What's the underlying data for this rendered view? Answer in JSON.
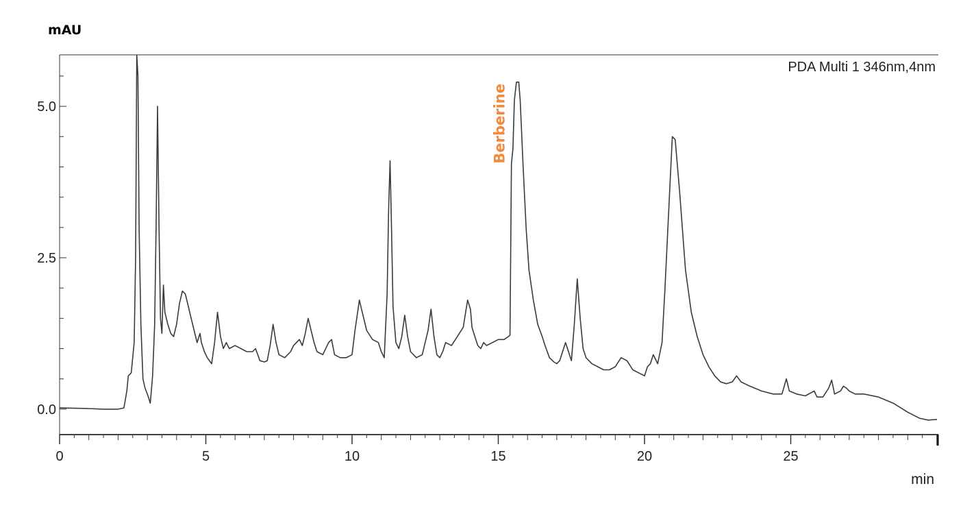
{
  "chart_data": {
    "type": "line",
    "ylabel": "mAU",
    "xlabel": "min",
    "legend": "PDA Multi 1 346nm,4nm",
    "legend_position": "top-right",
    "xlim": [
      0,
      30
    ],
    "ylim": [
      -0.42,
      5.85
    ],
    "x_ticks": [
      0,
      5,
      10,
      15,
      20,
      25
    ],
    "x_tick_labels": [
      "0",
      "5",
      "10",
      "15",
      "20",
      "25"
    ],
    "y_ticks": [
      0,
      2.5,
      5
    ],
    "y_tick_labels": [
      "0.0",
      "2.5",
      "5.0"
    ],
    "grid": false,
    "line_color": "#3a3a3a",
    "annotations": [
      {
        "text": "Berberine",
        "x": 15.4,
        "y": 4.1,
        "color": "#f28a3c",
        "rotation": -90
      }
    ],
    "series": [
      {
        "points": [
          [
            0,
            0.02
          ],
          [
            1,
            0.01
          ],
          [
            1.5,
            0.0
          ],
          [
            2.0,
            0.0
          ],
          [
            2.2,
            0.02
          ],
          [
            2.3,
            0.3
          ],
          [
            2.35,
            0.55
          ],
          [
            2.45,
            0.6
          ],
          [
            2.55,
            1.1
          ],
          [
            2.6,
            2.5
          ],
          [
            2.64,
            5.85
          ],
          [
            2.68,
            5.5
          ],
          [
            2.72,
            3.0
          ],
          [
            2.78,
            1.4
          ],
          [
            2.85,
            0.5
          ],
          [
            2.92,
            0.35
          ],
          [
            3.0,
            0.25
          ],
          [
            3.05,
            0.18
          ],
          [
            3.1,
            0.1
          ],
          [
            3.18,
            0.55
          ],
          [
            3.25,
            1.4
          ],
          [
            3.3,
            3.0
          ],
          [
            3.35,
            5.0
          ],
          [
            3.4,
            3.0
          ],
          [
            3.45,
            1.5
          ],
          [
            3.5,
            1.25
          ],
          [
            3.55,
            2.05
          ],
          [
            3.6,
            1.6
          ],
          [
            3.7,
            1.4
          ],
          [
            3.8,
            1.25
          ],
          [
            3.9,
            1.2
          ],
          [
            4.0,
            1.4
          ],
          [
            4.1,
            1.75
          ],
          [
            4.2,
            1.95
          ],
          [
            4.3,
            1.9
          ],
          [
            4.4,
            1.7
          ],
          [
            4.5,
            1.5
          ],
          [
            4.6,
            1.3
          ],
          [
            4.7,
            1.1
          ],
          [
            4.8,
            1.25
          ],
          [
            4.85,
            1.1
          ],
          [
            4.95,
            0.95
          ],
          [
            5.05,
            0.85
          ],
          [
            5.2,
            0.75
          ],
          [
            5.3,
            1.1
          ],
          [
            5.4,
            1.6
          ],
          [
            5.5,
            1.2
          ],
          [
            5.6,
            1.0
          ],
          [
            5.7,
            1.1
          ],
          [
            5.8,
            1.0
          ],
          [
            6.0,
            1.05
          ],
          [
            6.2,
            1.0
          ],
          [
            6.4,
            0.95
          ],
          [
            6.6,
            0.95
          ],
          [
            6.7,
            1.0
          ],
          [
            6.85,
            0.8
          ],
          [
            7.0,
            0.78
          ],
          [
            7.1,
            0.8
          ],
          [
            7.2,
            1.05
          ],
          [
            7.3,
            1.4
          ],
          [
            7.4,
            1.1
          ],
          [
            7.5,
            0.9
          ],
          [
            7.7,
            0.85
          ],
          [
            7.9,
            0.95
          ],
          [
            8.0,
            1.05
          ],
          [
            8.2,
            1.15
          ],
          [
            8.3,
            1.05
          ],
          [
            8.4,
            1.25
          ],
          [
            8.5,
            1.5
          ],
          [
            8.6,
            1.3
          ],
          [
            8.7,
            1.1
          ],
          [
            8.8,
            0.95
          ],
          [
            9.0,
            0.9
          ],
          [
            9.2,
            1.1
          ],
          [
            9.3,
            1.15
          ],
          [
            9.4,
            0.9
          ],
          [
            9.6,
            0.85
          ],
          [
            9.8,
            0.85
          ],
          [
            10.0,
            0.9
          ],
          [
            10.1,
            1.3
          ],
          [
            10.25,
            1.8
          ],
          [
            10.35,
            1.6
          ],
          [
            10.5,
            1.3
          ],
          [
            10.7,
            1.15
          ],
          [
            10.9,
            1.1
          ],
          [
            11.0,
            0.95
          ],
          [
            11.1,
            0.85
          ],
          [
            11.2,
            1.9
          ],
          [
            11.25,
            3.3
          ],
          [
            11.3,
            4.1
          ],
          [
            11.35,
            3.0
          ],
          [
            11.4,
            1.7
          ],
          [
            11.5,
            1.1
          ],
          [
            11.6,
            1.0
          ],
          [
            11.7,
            1.2
          ],
          [
            11.8,
            1.55
          ],
          [
            11.9,
            1.2
          ],
          [
            12.0,
            0.95
          ],
          [
            12.2,
            0.85
          ],
          [
            12.4,
            0.9
          ],
          [
            12.6,
            1.3
          ],
          [
            12.7,
            1.65
          ],
          [
            12.8,
            1.2
          ],
          [
            12.9,
            0.9
          ],
          [
            13.0,
            0.85
          ],
          [
            13.1,
            0.95
          ],
          [
            13.2,
            1.1
          ],
          [
            13.4,
            1.05
          ],
          [
            13.6,
            1.2
          ],
          [
            13.8,
            1.35
          ],
          [
            13.95,
            1.8
          ],
          [
            14.05,
            1.65
          ],
          [
            14.1,
            1.35
          ],
          [
            14.2,
            1.2
          ],
          [
            14.3,
            1.05
          ],
          [
            14.4,
            1.0
          ],
          [
            14.5,
            1.1
          ],
          [
            14.6,
            1.05
          ],
          [
            14.8,
            1.1
          ],
          [
            15.0,
            1.15
          ],
          [
            15.2,
            1.15
          ],
          [
            15.35,
            1.2
          ],
          [
            15.4,
            1.22
          ],
          [
            15.45,
            4.05
          ],
          [
            15.5,
            4.3
          ],
          [
            15.55,
            5.1
          ],
          [
            15.62,
            5.4
          ],
          [
            15.7,
            5.4
          ],
          [
            15.75,
            5.1
          ],
          [
            15.85,
            4.0
          ],
          [
            15.95,
            3.0
          ],
          [
            16.05,
            2.3
          ],
          [
            16.2,
            1.8
          ],
          [
            16.35,
            1.4
          ],
          [
            16.5,
            1.2
          ],
          [
            16.6,
            1.05
          ],
          [
            16.75,
            0.85
          ],
          [
            16.9,
            0.78
          ],
          [
            17.0,
            0.75
          ],
          [
            17.1,
            0.8
          ],
          [
            17.2,
            0.95
          ],
          [
            17.3,
            1.1
          ],
          [
            17.4,
            0.95
          ],
          [
            17.5,
            0.8
          ],
          [
            17.6,
            1.4
          ],
          [
            17.7,
            2.15
          ],
          [
            17.8,
            1.5
          ],
          [
            17.9,
            1.0
          ],
          [
            18.0,
            0.85
          ],
          [
            18.2,
            0.75
          ],
          [
            18.4,
            0.7
          ],
          [
            18.6,
            0.65
          ],
          [
            18.8,
            0.65
          ],
          [
            19.0,
            0.7
          ],
          [
            19.2,
            0.85
          ],
          [
            19.4,
            0.8
          ],
          [
            19.6,
            0.65
          ],
          [
            19.8,
            0.6
          ],
          [
            20.0,
            0.55
          ],
          [
            20.1,
            0.7
          ],
          [
            20.2,
            0.75
          ],
          [
            20.3,
            0.9
          ],
          [
            20.45,
            0.75
          ],
          [
            20.6,
            1.1
          ],
          [
            20.7,
            2.0
          ],
          [
            20.85,
            3.5
          ],
          [
            20.95,
            4.5
          ],
          [
            21.05,
            4.45
          ],
          [
            21.2,
            3.6
          ],
          [
            21.4,
            2.3
          ],
          [
            21.6,
            1.6
          ],
          [
            21.8,
            1.2
          ],
          [
            22.0,
            0.9
          ],
          [
            22.2,
            0.7
          ],
          [
            22.4,
            0.55
          ],
          [
            22.6,
            0.45
          ],
          [
            22.8,
            0.42
          ],
          [
            23.0,
            0.45
          ],
          [
            23.15,
            0.55
          ],
          [
            23.3,
            0.45
          ],
          [
            23.6,
            0.38
          ],
          [
            24.0,
            0.3
          ],
          [
            24.4,
            0.25
          ],
          [
            24.7,
            0.25
          ],
          [
            24.85,
            0.5
          ],
          [
            24.95,
            0.3
          ],
          [
            25.2,
            0.25
          ],
          [
            25.5,
            0.22
          ],
          [
            25.8,
            0.3
          ],
          [
            25.9,
            0.2
          ],
          [
            26.1,
            0.2
          ],
          [
            26.3,
            0.35
          ],
          [
            26.4,
            0.48
          ],
          [
            26.5,
            0.25
          ],
          [
            26.7,
            0.3
          ],
          [
            26.8,
            0.38
          ],
          [
            26.9,
            0.35
          ],
          [
            27.0,
            0.3
          ],
          [
            27.2,
            0.25
          ],
          [
            27.5,
            0.25
          ],
          [
            28.0,
            0.2
          ],
          [
            28.5,
            0.1
          ],
          [
            29.0,
            -0.05
          ],
          [
            29.4,
            -0.15
          ],
          [
            29.7,
            -0.18
          ],
          [
            30.0,
            -0.17
          ]
        ]
      }
    ]
  }
}
